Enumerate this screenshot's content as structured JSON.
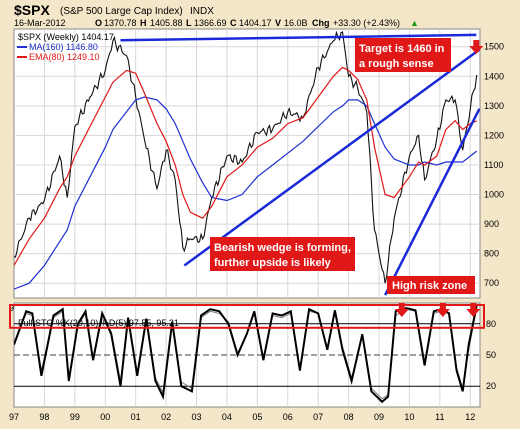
{
  "header": {
    "symbol": "$SPX",
    "name": "(S&P 500 Large Cap Index)",
    "exchange": "INDX",
    "date": "16-Mar-2012",
    "open_label": "O",
    "open": "1370.78",
    "high_label": "H",
    "high": "1405.88",
    "low_label": "L",
    "low": "1366.69",
    "close_label": "C",
    "close": "1404.17",
    "volume_label": "V",
    "volume": "16.0B",
    "chg_label": "Chg",
    "chg": "+33.30 (+2.43%)",
    "chg_arrow": "▲"
  },
  "legend": {
    "price": "$SPX (Weekly) 1404.17",
    "ma": "MA(160) 1146.80",
    "ema": "EMA(80) 1249.10",
    "sto": "Full STO %K(20,10) %D(5) 97.55, 95.21"
  },
  "colors": {
    "background": "#f4e6c8",
    "plot_background": "#ffffff",
    "price": "#111111",
    "ma": "#1f2fd0",
    "ema": "#e01818",
    "trendline": "#1a2ad8",
    "annotation": "#e01818",
    "overbought_box": "#e01818",
    "grid": "#d8d8d8"
  },
  "annotations": {
    "target": "Target is 1460 in a rough sense",
    "wedge": "Bearish wedge is forming, further upside is likely",
    "risk": "High risk zone"
  },
  "chart_data": [
    {
      "type": "line",
      "title": "$SPX (Weekly)",
      "x": [
        1997.0,
        1997.5,
        1998.0,
        1998.5,
        1998.75,
        1999.0,
        1999.5,
        2000.0,
        2000.25,
        2000.7,
        2001.0,
        2001.3,
        2001.7,
        2002.0,
        2002.3,
        2002.55,
        2002.8,
        2003.2,
        2003.5,
        2004.0,
        2004.5,
        2005.0,
        2005.5,
        2006.0,
        2006.5,
        2007.0,
        2007.5,
        2007.8,
        2008.0,
        2008.3,
        2008.6,
        2008.85,
        2009.2,
        2009.5,
        2010.0,
        2010.3,
        2010.5,
        2010.9,
        2011.2,
        2011.5,
        2011.75,
        2012.0,
        2012.21
      ],
      "series": [
        {
          "name": "$SPX (Weekly)",
          "values": [
            790,
            920,
            980,
            1130,
            990,
            1230,
            1330,
            1420,
            1520,
            1470,
            1330,
            1180,
            1020,
            1150,
            1050,
            820,
            850,
            850,
            990,
            1130,
            1110,
            1210,
            1220,
            1280,
            1260,
            1430,
            1520,
            1550,
            1400,
            1360,
            1280,
            880,
            700,
            920,
            1130,
            1200,
            1050,
            1190,
            1320,
            1320,
            1150,
            1290,
            1404
          ]
        },
        {
          "name": "MA(160)",
          "values": [
            680,
            700,
            760,
            840,
            880,
            960,
            1060,
            1160,
            1220,
            1280,
            1320,
            1330,
            1320,
            1290,
            1240,
            1180,
            1120,
            1040,
            990,
            980,
            1000,
            1060,
            1100,
            1140,
            1180,
            1230,
            1280,
            1300,
            1320,
            1320,
            1300,
            1240,
            1160,
            1120,
            1100,
            1100,
            1110,
            1100,
            1110,
            1110,
            1110,
            1130,
            1147
          ]
        },
        {
          "name": "EMA(80)",
          "values": [
            760,
            850,
            920,
            1020,
            1060,
            1130,
            1230,
            1330,
            1380,
            1420,
            1410,
            1340,
            1240,
            1180,
            1100,
            1000,
            940,
            920,
            960,
            1060,
            1100,
            1160,
            1190,
            1240,
            1260,
            1330,
            1400,
            1430,
            1420,
            1390,
            1320,
            1160,
            1000,
            990,
            1060,
            1110,
            1100,
            1130,
            1220,
            1250,
            1220,
            1240,
            1249
          ]
        }
      ],
      "ylim": [
        650,
        1560
      ],
      "yticks": [
        700,
        800,
        900,
        1000,
        1100,
        1200,
        1300,
        1400,
        1500
      ],
      "xticks": [
        "97",
        "98",
        "99",
        "00",
        "01",
        "02",
        "03",
        "04",
        "05",
        "06",
        "07",
        "08",
        "09",
        "10",
        "11",
        "12"
      ],
      "trendlines": [
        {
          "x": [
            2000.5,
            2012.2
          ],
          "y": [
            1522,
            1540
          ]
        },
        {
          "x": [
            2002.6,
            2012.3
          ],
          "y": [
            760,
            1490
          ]
        },
        {
          "x": [
            2009.2,
            2012.3
          ],
          "y": [
            660,
            1290
          ]
        }
      ],
      "annotations": [
        {
          "text": "Target is 1460 in a rough sense"
        },
        {
          "text": "Bearish wedge is forming, further upside is likely"
        },
        {
          "text": "High risk zone"
        }
      ],
      "markers": [
        {
          "type": "down-arrow",
          "x": 2012.0
        }
      ]
    },
    {
      "type": "line",
      "title": "Full STO %K(20,10) %D(5)",
      "x": [
        1997.0,
        1997.4,
        1997.6,
        1997.9,
        1998.3,
        1998.6,
        1998.8,
        1999.1,
        1999.35,
        1999.6,
        1999.9,
        2000.2,
        2000.5,
        2000.75,
        2001.05,
        2001.35,
        2001.65,
        2001.9,
        2002.2,
        2002.5,
        2002.85,
        2003.15,
        2003.45,
        2003.75,
        2004.05,
        2004.35,
        2004.65,
        2004.9,
        2005.2,
        2005.5,
        2005.8,
        2006.1,
        2006.4,
        2006.7,
        2007.0,
        2007.3,
        2007.55,
        2007.8,
        2008.1,
        2008.45,
        2008.75,
        2009.1,
        2009.3,
        2009.55,
        2009.9,
        2010.2,
        2010.5,
        2010.8,
        2011.05,
        2011.3,
        2011.55,
        2011.75,
        2011.95,
        2012.21
      ],
      "series": [
        {
          "name": "%K",
          "values": [
            60,
            92,
            90,
            30,
            88,
            94,
            25,
            80,
            92,
            45,
            90,
            70,
            20,
            86,
            30,
            85,
            25,
            10,
            82,
            20,
            15,
            88,
            94,
            92,
            80,
            50,
            70,
            92,
            45,
            90,
            88,
            92,
            35,
            94,
            90,
            55,
            93,
            55,
            25,
            70,
            15,
            5,
            10,
            92,
            95,
            93,
            40,
            92,
            94,
            90,
            35,
            15,
            60,
            97.55
          ]
        },
        {
          "name": "%D",
          "values": [
            62,
            90,
            88,
            35,
            86,
            92,
            30,
            78,
            90,
            48,
            88,
            72,
            25,
            84,
            34,
            82,
            28,
            14,
            80,
            24,
            18,
            86,
            92,
            90,
            82,
            52,
            70,
            90,
            48,
            88,
            86,
            90,
            38,
            92,
            90,
            57,
            91,
            58,
            28,
            68,
            18,
            8,
            12,
            88,
            94,
            92,
            44,
            90,
            92,
            90,
            38,
            18,
            55,
            95.21
          ]
        }
      ],
      "ylim": [
        0,
        100
      ],
      "yticks": [
        20,
        50,
        80
      ],
      "reference_lines": [
        20,
        50,
        80
      ],
      "overbought_zone": [
        80,
        100
      ],
      "markers": [
        {
          "type": "down-arrow",
          "x": 2009.75
        },
        {
          "type": "down-arrow",
          "x": 2011.1
        },
        {
          "type": "down-arrow",
          "x": 2012.1
        }
      ]
    }
  ]
}
